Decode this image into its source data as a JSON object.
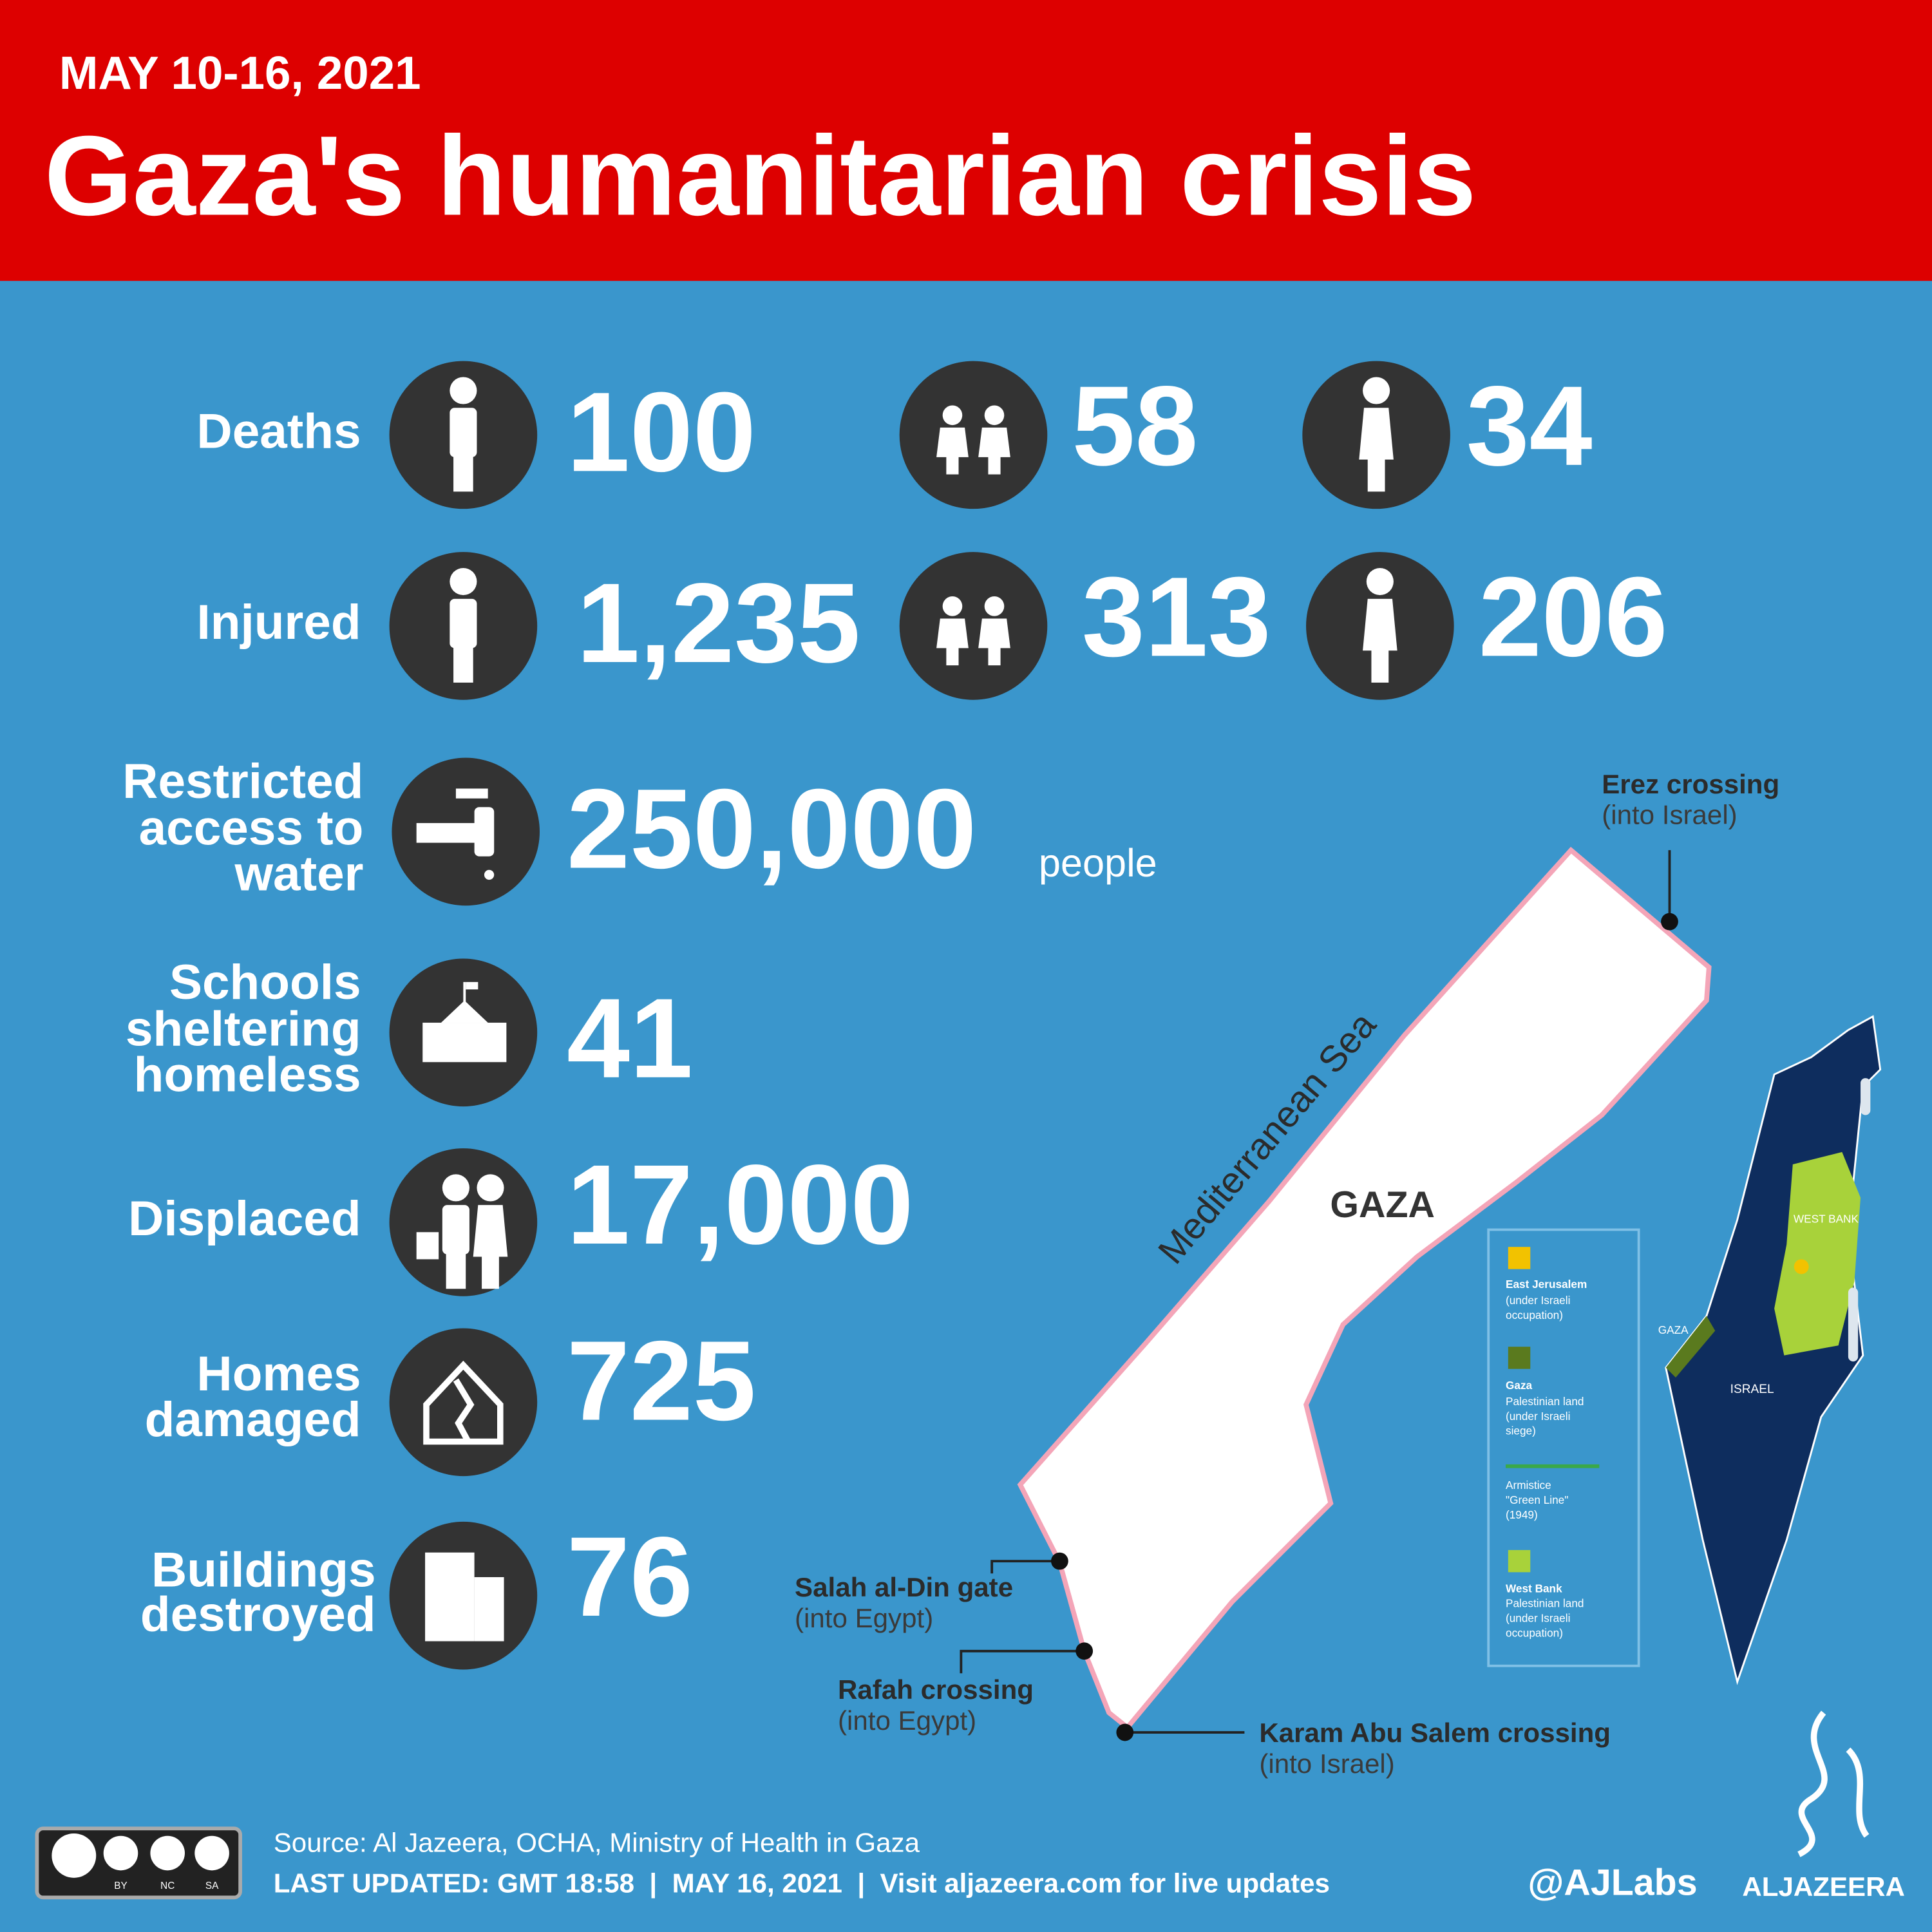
{
  "header": {
    "date": "MAY 10-16, 2021",
    "title": "Gaza's humanitarian crisis"
  },
  "stats": [
    {
      "label": [
        "Deaths"
      ],
      "values": [
        "100",
        "58",
        "34"
      ]
    },
    {
      "label": [
        "Injured"
      ],
      "values": [
        "1,235",
        "313",
        "206"
      ]
    },
    {
      "label": [
        "Restricted",
        "access to",
        "water"
      ],
      "values": [
        "250,000"
      ],
      "unit": "people"
    },
    {
      "label": [
        "Schools",
        "sheltering",
        "homeless"
      ],
      "values": [
        "41"
      ]
    },
    {
      "label": [
        "Displaced"
      ],
      "values": [
        "17,000"
      ]
    },
    {
      "label": [
        "Homes",
        "damaged"
      ],
      "values": [
        "725"
      ]
    },
    {
      "label": [
        "Buildings",
        "destroyed"
      ],
      "values": [
        "76"
      ]
    }
  ],
  "map": {
    "sea": "Mediterranean Sea",
    "region": "GAZA",
    "crossings": [
      {
        "name": "Erez crossing",
        "note": "(into Israel)"
      },
      {
        "name": "Salah al-Din gate",
        "note": "(into Egypt)"
      },
      {
        "name": "Rafah crossing",
        "note": "(into Egypt)"
      },
      {
        "name": "Karam Abu Salem crossing",
        "note": "(into Israel)"
      }
    ],
    "legend": [
      {
        "title": "East Jerusalem",
        "text": [
          "(under Israeli",
          "occupation)"
        ]
      },
      {
        "title": "Gaza",
        "text": [
          "Palestinian land",
          "(under Israeli",
          "siege)"
        ]
      },
      {
        "title": "Armistice",
        "text": [
          "\"Green Line\"",
          "(1949)"
        ]
      },
      {
        "title": "West Bank",
        "text": [
          "Palestinian land",
          "(under Israeli",
          "occupation)"
        ]
      }
    ],
    "inset": {
      "west_bank": "WEST BANK",
      "gaza": "GAZA",
      "israel": "ISRAEL"
    }
  },
  "footer": {
    "source": "Source: Al Jazeera, OCHA, Ministry of Health in Gaza",
    "updated": "LAST UPDATED: GMT 18:58  |  MAY 16, 2021  |  Visit aljazeera.com for live updates",
    "handle": "@AJLabs",
    "brand": "ALJAZEERA",
    "license": [
      "BY",
      "NC",
      "SA"
    ]
  }
}
